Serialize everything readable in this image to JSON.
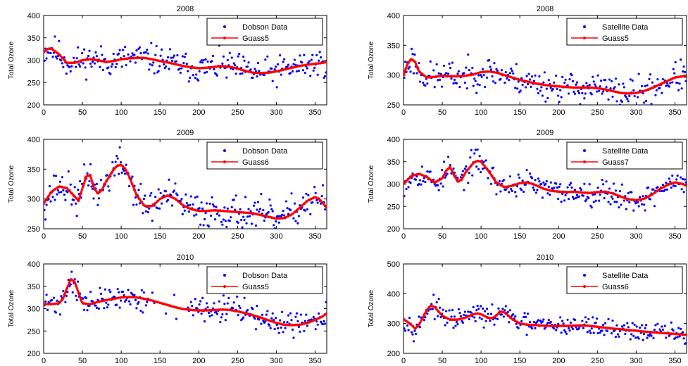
{
  "chart_data": [
    {
      "type": "scatter",
      "title": "2008",
      "ylabel": "Total Ozone",
      "xlim": [
        0,
        365
      ],
      "ylim": [
        200,
        400
      ],
      "xticks": [
        0,
        50,
        100,
        150,
        200,
        250,
        300,
        350
      ],
      "yticks": [
        200,
        250,
        300,
        350,
        400
      ],
      "legend_position": "top-right",
      "series": [
        {
          "name": "Dobson Data",
          "kind": "scatter",
          "color": "#0000ff"
        },
        {
          "name": "Guass5",
          "kind": "line",
          "color": "#ff0000"
        }
      ],
      "fit_x": [
        0,
        5,
        10,
        20,
        30,
        40,
        50,
        60,
        70,
        80,
        90,
        100,
        110,
        120,
        130,
        140,
        150,
        160,
        170,
        180,
        190,
        200,
        210,
        220,
        230,
        240,
        250,
        260,
        270,
        280,
        290,
        300,
        310,
        320,
        330,
        340,
        350,
        360,
        365
      ],
      "fit_y": [
        318,
        325,
        326,
        313,
        294,
        294,
        300,
        302,
        300,
        296,
        298,
        302,
        304,
        305,
        305,
        302,
        298,
        295,
        291,
        287,
        284,
        282,
        283,
        285,
        287,
        285,
        281,
        276,
        272,
        271,
        272,
        275,
        279,
        283,
        287,
        290,
        292,
        294,
        296
      ],
      "scatter_spread": 26,
      "scatter_seed": 11
    },
    {
      "type": "scatter",
      "title": "2008",
      "ylabel": "Total Ozone",
      "xlim": [
        0,
        365
      ],
      "ylim": [
        250,
        400
      ],
      "xticks": [
        0,
        50,
        100,
        150,
        200,
        250,
        300,
        350
      ],
      "yticks": [
        250,
        300,
        350,
        400
      ],
      "legend_position": "top-right",
      "series": [
        {
          "name": "Satellite Data",
          "kind": "scatter",
          "color": "#0000ff"
        },
        {
          "name": "Guass5",
          "kind": "line",
          "color": "#ff0000"
        }
      ],
      "fit_x": [
        0,
        5,
        10,
        15,
        20,
        30,
        40,
        50,
        60,
        70,
        80,
        90,
        100,
        110,
        120,
        130,
        140,
        150,
        160,
        170,
        180,
        190,
        200,
        210,
        220,
        230,
        240,
        250,
        260,
        270,
        280,
        290,
        300,
        310,
        320,
        330,
        340,
        350,
        360,
        365
      ],
      "fit_y": [
        300,
        318,
        327,
        322,
        306,
        296,
        297,
        299,
        298,
        298,
        299,
        301,
        305,
        306,
        304,
        300,
        296,
        292,
        289,
        286,
        284,
        282,
        281,
        280,
        279,
        279,
        279,
        278,
        276,
        273,
        270,
        269,
        270,
        273,
        278,
        284,
        290,
        296,
        298,
        297
      ],
      "scatter_spread": 20,
      "scatter_seed": 23
    },
    {
      "type": "scatter",
      "title": "2009",
      "ylabel": "Total Ozone",
      "xlim": [
        0,
        365
      ],
      "ylim": [
        250,
        400
      ],
      "xticks": [
        0,
        50,
        100,
        150,
        200,
        250,
        300,
        350
      ],
      "yticks": [
        250,
        300,
        350,
        400
      ],
      "legend_position": "top-right",
      "series": [
        {
          "name": "Dobson Data",
          "kind": "scatter",
          "color": "#0000ff"
        },
        {
          "name": "Guass6",
          "kind": "line",
          "color": "#ff0000"
        }
      ],
      "fit_x": [
        0,
        10,
        20,
        30,
        40,
        45,
        50,
        55,
        60,
        65,
        70,
        75,
        80,
        90,
        95,
        100,
        105,
        110,
        120,
        130,
        140,
        150,
        160,
        170,
        180,
        190,
        200,
        210,
        220,
        230,
        240,
        250,
        260,
        270,
        280,
        290,
        300,
        310,
        320,
        330,
        340,
        350,
        355,
        360,
        365
      ],
      "fit_y": [
        292,
        312,
        321,
        318,
        304,
        297,
        318,
        338,
        340,
        318,
        309,
        315,
        328,
        349,
        356,
        357,
        351,
        338,
        306,
        288,
        288,
        300,
        306,
        300,
        289,
        283,
        280,
        280,
        281,
        280,
        279,
        278,
        277,
        276,
        273,
        270,
        267,
        268,
        274,
        285,
        297,
        303,
        300,
        293,
        285
      ],
      "scatter_spread": 22,
      "scatter_seed": 37
    },
    {
      "type": "scatter",
      "title": "2009",
      "ylabel": "Total Ozone",
      "xlim": [
        0,
        365
      ],
      "ylim": [
        200,
        400
      ],
      "xticks": [
        0,
        50,
        100,
        150,
        200,
        250,
        300,
        350
      ],
      "yticks": [
        200,
        250,
        300,
        350,
        400
      ],
      "legend_position": "top-right",
      "series": [
        {
          "name": "Satellite Data",
          "kind": "scatter",
          "color": "#0000ff"
        },
        {
          "name": "Guass7",
          "kind": "line",
          "color": "#ff0000"
        }
      ],
      "fit_x": [
        0,
        10,
        20,
        30,
        40,
        50,
        55,
        60,
        65,
        70,
        75,
        80,
        90,
        95,
        100,
        110,
        120,
        130,
        140,
        150,
        160,
        170,
        180,
        190,
        200,
        210,
        220,
        230,
        240,
        250,
        260,
        270,
        280,
        290,
        300,
        310,
        320,
        330,
        340,
        350,
        360,
        365
      ],
      "fit_y": [
        300,
        318,
        323,
        316,
        303,
        313,
        330,
        338,
        320,
        305,
        310,
        326,
        347,
        352,
        350,
        328,
        303,
        293,
        296,
        302,
        304,
        298,
        290,
        285,
        283,
        282,
        283,
        281,
        280,
        282,
        283,
        279,
        272,
        266,
        264,
        267,
        276,
        288,
        298,
        304,
        300,
        296
      ],
      "scatter_spread": 22,
      "scatter_seed": 53
    },
    {
      "type": "scatter",
      "title": "2010",
      "ylabel": "Total Ozone",
      "xlim": [
        0,
        365
      ],
      "ylim": [
        200,
        400
      ],
      "xticks": [
        0,
        50,
        100,
        150,
        200,
        250,
        300,
        350
      ],
      "yticks": [
        200,
        250,
        300,
        350,
        400
      ],
      "legend_position": "top-right",
      "series": [
        {
          "name": "Dobson Data",
          "kind": "scatter",
          "color": "#0000ff"
        },
        {
          "name": "Guass5",
          "kind": "line",
          "color": "#ff0000"
        }
      ],
      "fit_x": [
        0,
        10,
        20,
        25,
        30,
        35,
        40,
        45,
        50,
        60,
        70,
        80,
        90,
        100,
        110,
        120,
        130,
        140,
        150,
        160,
        170,
        180,
        190,
        200,
        210,
        220,
        230,
        240,
        250,
        260,
        270,
        280,
        290,
        300,
        310,
        320,
        330,
        340,
        350,
        360,
        365
      ],
      "fit_y": [
        310,
        310,
        312,
        322,
        345,
        366,
        360,
        335,
        312,
        310,
        315,
        319,
        322,
        325,
        326,
        325,
        322,
        318,
        313,
        308,
        303,
        299,
        297,
        296,
        296,
        297,
        298,
        297,
        294,
        290,
        285,
        280,
        274,
        268,
        264,
        263,
        264,
        268,
        275,
        283,
        290
      ],
      "scatter_spread": 22,
      "scatter_seed": 71,
      "scatter_gap": [
        135,
        185
      ]
    },
    {
      "type": "scatter",
      "title": "2010",
      "ylabel": "Total Ozone",
      "xlim": [
        0,
        365
      ],
      "ylim": [
        200,
        500
      ],
      "xticks": [
        0,
        50,
        100,
        150,
        200,
        250,
        300,
        350
      ],
      "yticks": [
        200,
        300,
        400,
        500
      ],
      "legend_position": "top-right",
      "series": [
        {
          "name": "Satellite Data",
          "kind": "scatter",
          "color": "#0000ff"
        },
        {
          "name": "Guass6",
          "kind": "line",
          "color": "#ff0000"
        }
      ],
      "fit_x": [
        0,
        10,
        15,
        20,
        30,
        35,
        40,
        50,
        60,
        70,
        80,
        90,
        95,
        100,
        110,
        115,
        120,
        125,
        130,
        140,
        150,
        160,
        170,
        180,
        190,
        200,
        210,
        220,
        230,
        240,
        250,
        260,
        270,
        280,
        290,
        300,
        310,
        320,
        330,
        340,
        350,
        360,
        365
      ],
      "fit_y": [
        315,
        296,
        283,
        296,
        345,
        360,
        356,
        326,
        313,
        313,
        320,
        331,
        334,
        331,
        318,
        318,
        328,
        340,
        338,
        315,
        300,
        296,
        295,
        293,
        292,
        292,
        292,
        293,
        294,
        292,
        289,
        286,
        283,
        281,
        278,
        276,
        273,
        271,
        269,
        267,
        265,
        263,
        262
      ],
      "scatter_spread": 26,
      "scatter_seed": 97
    }
  ]
}
